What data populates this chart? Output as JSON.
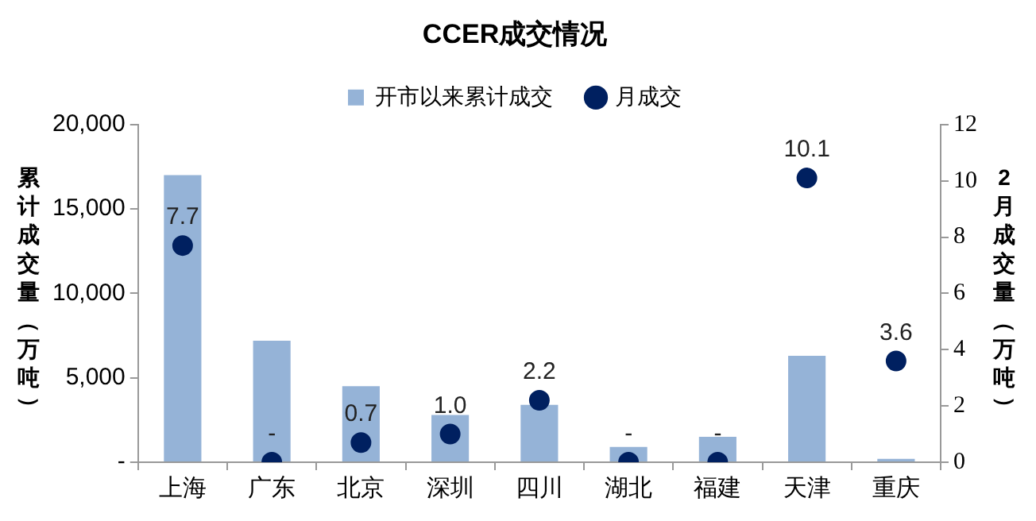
{
  "chart_data": {
    "type": "bar",
    "title": "CCER成交情况",
    "categories": [
      "上海",
      "广东",
      "北京",
      "深圳",
      "四川",
      "湖北",
      "福建",
      "天津",
      "重庆"
    ],
    "ylabel": "累计成交量（万吨）",
    "y2label": "2月成交量（万吨）",
    "series": [
      {
        "name": "开市以来累计成交",
        "color": "#95b3d7",
        "values": [
          17000,
          7200,
          4500,
          2800,
          3400,
          900,
          1500,
          6300,
          200
        ]
      },
      {
        "name": "月成交",
        "type": "scatter",
        "axis": "y2",
        "color": "#002060",
        "marker": "circle",
        "x": [
          "上海",
          "广东",
          "北京",
          "深圳",
          "四川",
          "湖北",
          "福建",
          "天津",
          "重庆"
        ],
        "values": [
          7.7,
          0,
          0.7,
          1.0,
          2.2,
          0,
          0,
          10.1,
          3.6
        ],
        "value_labels": [
          "7.7",
          "-",
          "0.7",
          "1.0",
          "2.2",
          "-",
          "-",
          "10.1",
          "3.6"
        ]
      }
    ],
    "ylim": [
      0,
      20000
    ],
    "yticks": [
      {
        "value": 0,
        "label": "-"
      },
      {
        "value": 5000,
        "label": "5,000"
      },
      {
        "value": 10000,
        "label": "10,000"
      },
      {
        "value": 15000,
        "label": "15,000"
      },
      {
        "value": 20000,
        "label": "20,000"
      }
    ],
    "y2lim": [
      0,
      12
    ],
    "y2ticks": [
      0,
      2,
      4,
      6,
      8,
      10,
      12
    ],
    "grid": false,
    "legend": "top"
  }
}
